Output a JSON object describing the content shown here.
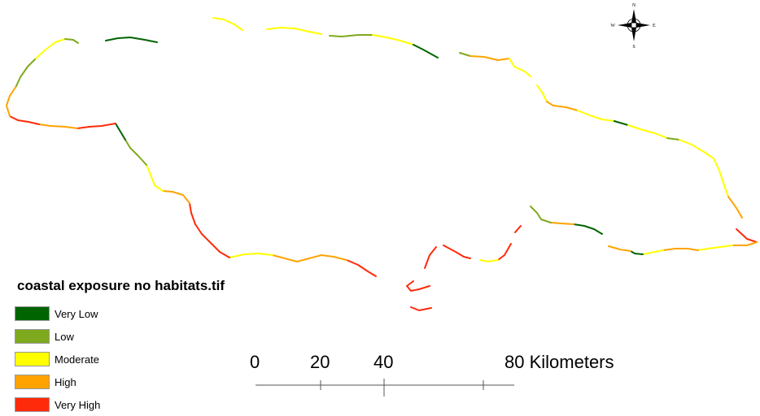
{
  "legend": {
    "title": "coastal exposure no habitats.tif",
    "classes": [
      {
        "label": "Very Low",
        "color": "#006400"
      },
      {
        "label": "Low",
        "color": "#7fa91e"
      },
      {
        "label": "Moderate",
        "color": "#ffff00"
      },
      {
        "label": "High",
        "color": "#ffa300"
      },
      {
        "label": "Very High",
        "color": "#ff2a0a"
      }
    ]
  },
  "scale_bar": {
    "labels": [
      "0",
      "20",
      "40",
      "80 Kilometers"
    ]
  },
  "north_arrow": {
    "icon": "compass-rose-icon",
    "letters": {
      "n": "N",
      "s": "S",
      "e": "E",
      "w": "W"
    }
  }
}
